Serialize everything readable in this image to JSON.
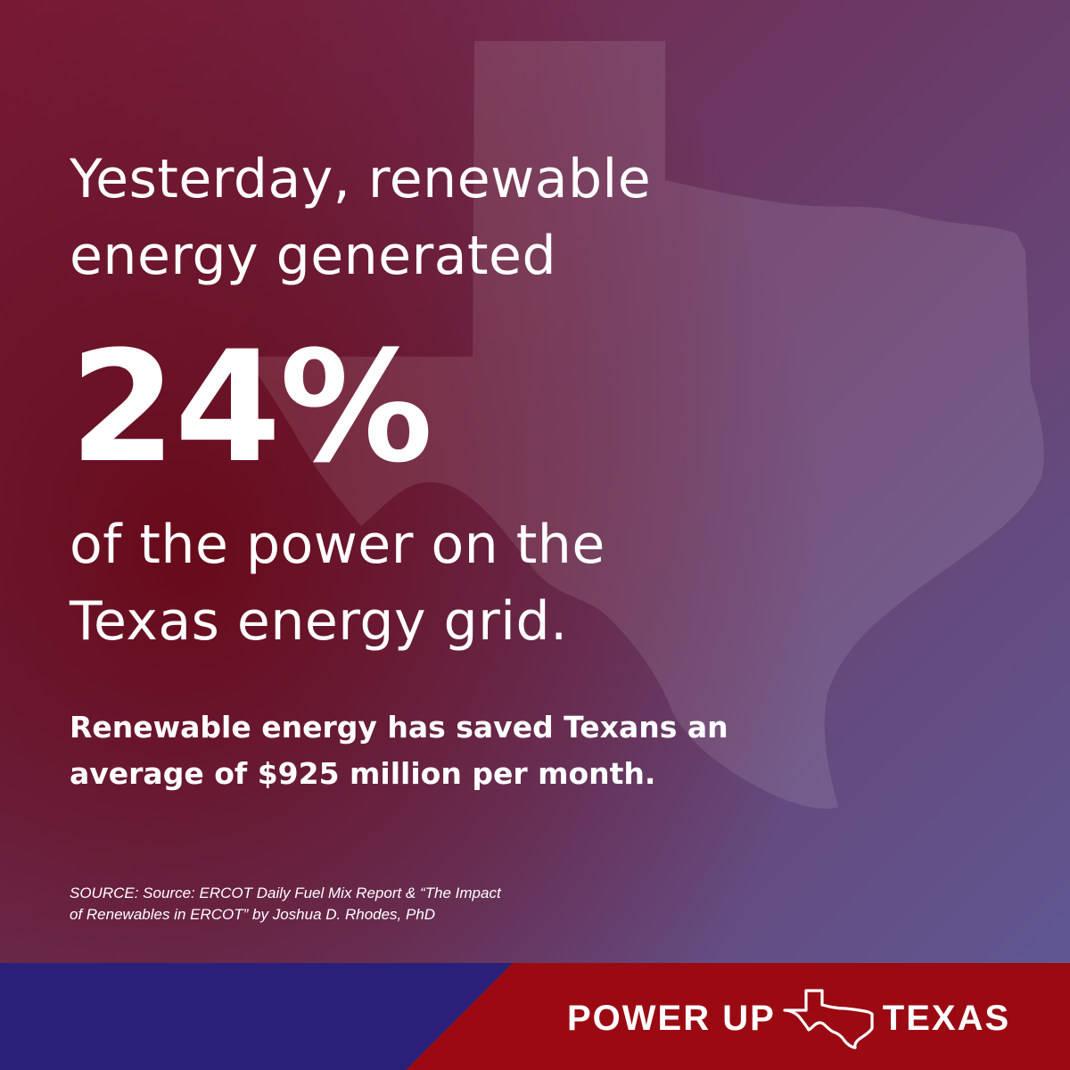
{
  "headline": {
    "line1": "Yesterday, renewable",
    "line2": "energy generated"
  },
  "stat": {
    "value": "24%"
  },
  "subline": {
    "line1": "of the power on the",
    "line2": "Texas energy grid."
  },
  "savings": {
    "line1": "Renewable energy has saved Texans an",
    "line2": "average of $925 million per month."
  },
  "source": {
    "line1": "SOURCE: Source: ERCOT Daily Fuel Mix Report & “The Impact",
    "line2": "of Renewables in ERCOT” by Joshua D. Rhodes, PhD"
  },
  "brand": {
    "left": "POWER UP",
    "right": "TEXAS",
    "icon": "texas-outline-icon"
  },
  "colors": {
    "footer_blue": "#2b2079",
    "footer_red": "#9b0a12",
    "text": "#ffffff"
  }
}
